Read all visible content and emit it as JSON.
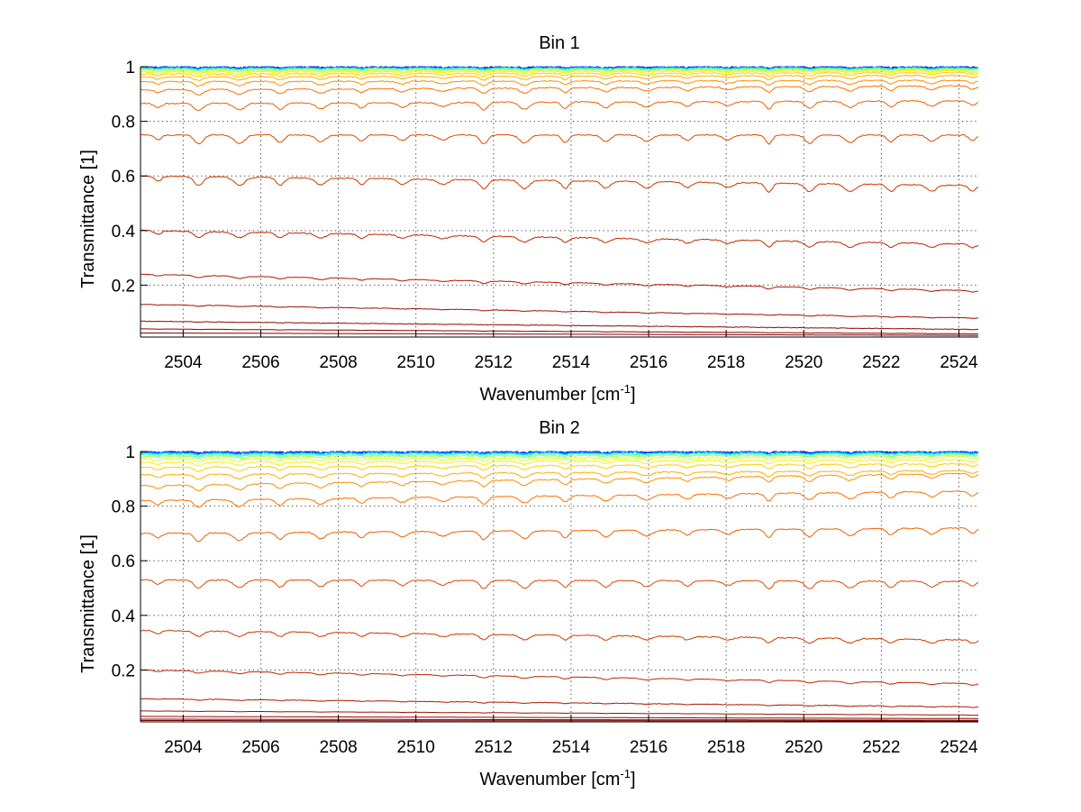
{
  "figure": {
    "background": "#ffffff"
  },
  "chart_data": [
    {
      "type": "line",
      "title": "Bin 1",
      "xlabel": "Wavenumber [cm",
      "xlabel_sup": "-1",
      "xlabel_end": "]",
      "ylabel": "Transmittance [1]",
      "xlim": [
        2502.9,
        2524.5
      ],
      "ylim": [
        0.01,
        1.0
      ],
      "xticks": [
        2504,
        2506,
        2508,
        2510,
        2512,
        2514,
        2516,
        2518,
        2520,
        2522,
        2524
      ],
      "yticks": [
        0.2,
        0.4,
        0.6,
        0.8,
        1
      ],
      "grid": true,
      "legend": "none",
      "series": [
        {
          "color": "#00008f",
          "start": 0.999,
          "end": 0.999,
          "dip": 0.004,
          "noise": 0.004
        },
        {
          "color": "#0010ff",
          "start": 0.998,
          "end": 0.998,
          "dip": 0.004,
          "noise": 0.004
        },
        {
          "color": "#0060ff",
          "start": 0.997,
          "end": 0.997,
          "dip": 0.004,
          "noise": 0.004
        },
        {
          "color": "#00b0ff",
          "start": 0.996,
          "end": 0.996,
          "dip": 0.004,
          "noise": 0.004
        },
        {
          "color": "#10ffef",
          "start": 0.994,
          "end": 0.995,
          "dip": 0.005,
          "noise": 0.003
        },
        {
          "color": "#60ff9f",
          "start": 0.992,
          "end": 0.993,
          "dip": 0.005,
          "noise": 0.003
        },
        {
          "color": "#a0ff5f",
          "start": 0.989,
          "end": 0.991,
          "dip": 0.006,
          "noise": 0.003
        },
        {
          "color": "#dfff20",
          "start": 0.985,
          "end": 0.988,
          "dip": 0.007,
          "noise": 0.003
        },
        {
          "color": "#ffef00",
          "start": 0.98,
          "end": 0.984,
          "dip": 0.008,
          "noise": 0.002
        },
        {
          "color": "#ffcf00",
          "start": 0.973,
          "end": 0.978,
          "dip": 0.01,
          "noise": 0.002
        },
        {
          "color": "#ffaf00",
          "start": 0.962,
          "end": 0.968,
          "dip": 0.012,
          "noise": 0.002
        },
        {
          "color": "#ff8f00",
          "start": 0.945,
          "end": 0.95,
          "dip": 0.015,
          "noise": 0.002
        },
        {
          "color": "#ff7000",
          "start": 0.915,
          "end": 0.93,
          "dip": 0.018,
          "noise": 0.002
        },
        {
          "color": "#f06000",
          "start": 0.865,
          "end": 0.875,
          "dip": 0.025,
          "noise": 0.002
        },
        {
          "color": "#e04a00",
          "start": 0.75,
          "end": 0.75,
          "dip": 0.03,
          "noise": 0.002
        },
        {
          "color": "#d03800",
          "start": 0.6,
          "end": 0.565,
          "dip": 0.03,
          "noise": 0.002
        },
        {
          "color": "#c02800",
          "start": 0.4,
          "end": 0.35,
          "dip": 0.02,
          "noise": 0.002
        },
        {
          "color": "#b01800",
          "start": 0.24,
          "end": 0.18,
          "dip": 0.008,
          "noise": 0.001
        },
        {
          "color": "#a01000",
          "start": 0.13,
          "end": 0.08,
          "dip": 0.003,
          "noise": 0.001
        },
        {
          "color": "#900800",
          "start": 0.068,
          "end": 0.038,
          "dip": 0.001,
          "noise": 0.001
        },
        {
          "color": "#850000",
          "start": 0.04,
          "end": 0.022,
          "dip": 0.001,
          "noise": 0.0
        },
        {
          "color": "#800000",
          "start": 0.025,
          "end": 0.016,
          "dip": 0.0,
          "noise": 0.0
        }
      ]
    },
    {
      "type": "line",
      "title": "Bin 2",
      "xlabel": "Wavenumber [cm",
      "xlabel_sup": "-1",
      "xlabel_end": "]",
      "ylabel": "Transmittance [1]",
      "xlim": [
        2502.9,
        2524.5
      ],
      "ylim": [
        0.01,
        1.0
      ],
      "xticks": [
        2504,
        2506,
        2508,
        2510,
        2512,
        2514,
        2516,
        2518,
        2520,
        2522,
        2524
      ],
      "yticks": [
        0.2,
        0.4,
        0.6,
        0.8,
        1
      ],
      "grid": true,
      "legend": "none",
      "series": [
        {
          "color": "#00008f",
          "start": 0.999,
          "end": 0.999,
          "dip": 0.004,
          "noise": 0.004
        },
        {
          "color": "#0010ff",
          "start": 0.998,
          "end": 0.998,
          "dip": 0.004,
          "noise": 0.004
        },
        {
          "color": "#0060ff",
          "start": 0.997,
          "end": 0.997,
          "dip": 0.004,
          "noise": 0.004
        },
        {
          "color": "#00b0ff",
          "start": 0.995,
          "end": 0.996,
          "dip": 0.005,
          "noise": 0.004
        },
        {
          "color": "#10ffef",
          "start": 0.992,
          "end": 0.994,
          "dip": 0.006,
          "noise": 0.003
        },
        {
          "color": "#60ff9f",
          "start": 0.988,
          "end": 0.991,
          "dip": 0.007,
          "noise": 0.003
        },
        {
          "color": "#a0ff5f",
          "start": 0.982,
          "end": 0.987,
          "dip": 0.008,
          "noise": 0.003
        },
        {
          "color": "#dfff20",
          "start": 0.973,
          "end": 0.98,
          "dip": 0.01,
          "noise": 0.003
        },
        {
          "color": "#ffef00",
          "start": 0.96,
          "end": 0.97,
          "dip": 0.012,
          "noise": 0.002
        },
        {
          "color": "#ffcf00",
          "start": 0.942,
          "end": 0.955,
          "dip": 0.014,
          "noise": 0.002
        },
        {
          "color": "#ffaf00",
          "start": 0.915,
          "end": 0.93,
          "dip": 0.017,
          "noise": 0.002
        },
        {
          "color": "#ff8f00",
          "start": 0.875,
          "end": 0.92,
          "dip": 0.02,
          "noise": 0.002
        },
        {
          "color": "#ff7000",
          "start": 0.82,
          "end": 0.855,
          "dip": 0.025,
          "noise": 0.002
        },
        {
          "color": "#f06000",
          "start": 0.7,
          "end": 0.72,
          "dip": 0.028,
          "noise": 0.002
        },
        {
          "color": "#e04a00",
          "start": 0.53,
          "end": 0.525,
          "dip": 0.028,
          "noise": 0.002
        },
        {
          "color": "#d03800",
          "start": 0.345,
          "end": 0.31,
          "dip": 0.018,
          "noise": 0.002
        },
        {
          "color": "#c02800",
          "start": 0.2,
          "end": 0.15,
          "dip": 0.008,
          "noise": 0.001
        },
        {
          "color": "#b01800",
          "start": 0.095,
          "end": 0.065,
          "dip": 0.003,
          "noise": 0.001
        },
        {
          "color": "#a01000",
          "start": 0.05,
          "end": 0.035,
          "dip": 0.001,
          "noise": 0.0
        },
        {
          "color": "#900800",
          "start": 0.03,
          "end": 0.022,
          "dip": 0.0,
          "noise": 0.0
        },
        {
          "color": "#850000",
          "start": 0.02,
          "end": 0.016,
          "dip": 0.0,
          "noise": 0.0
        },
        {
          "color": "#800000",
          "start": 0.015,
          "end": 0.013,
          "dip": 0.0,
          "noise": 0.0
        }
      ]
    }
  ]
}
